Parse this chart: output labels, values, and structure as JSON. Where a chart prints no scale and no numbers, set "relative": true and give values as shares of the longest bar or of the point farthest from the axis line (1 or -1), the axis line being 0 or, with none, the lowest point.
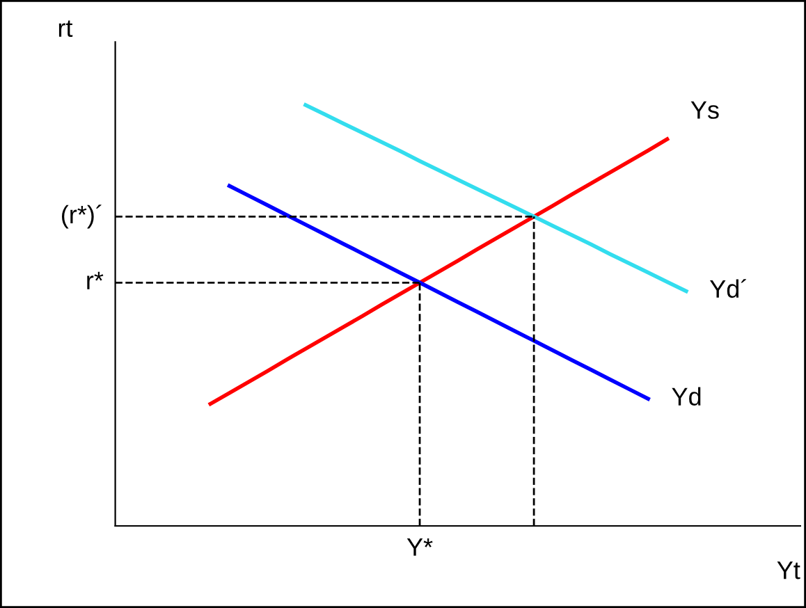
{
  "chart_data": {
    "type": "line",
    "relative": true,
    "xlabel": "Yt",
    "ylabel": "rt",
    "line_style": "solid",
    "categories": [
      null,
      null,
      null,
      null,
      null,
      null,
      null,
      null,
      null,
      null,
      null,
      null,
      null,
      null,
      null,
      null,
      null,
      null,
      null,
      null,
      null,
      null,
      null,
      null,
      null,
      null,
      null,
      null,
      null,
      null,
      null,
      null,
      null,
      null,
      null,
      null,
      null
    ],
    "series": [
      {
        "name": "Ys",
        "color": "#ff0000",
        "values": [
          null,
          null,
          null,
          null,
          null,
          0.29,
          0.316,
          0.342,
          0.368,
          0.395,
          0.421,
          0.447,
          0.473,
          0.499,
          0.526,
          0.552,
          0.578,
          0.604,
          0.63,
          0.657,
          0.683,
          0.709,
          0.735,
          0.761,
          0.788,
          0.814,
          0.84,
          0.866,
          0.892,
          0.919,
          null,
          null,
          null,
          null,
          null,
          null,
          null
        ]
      },
      {
        "name": "Yd",
        "color": "#0000ff",
        "values": [
          null,
          null,
          null,
          null,
          null,
          null,
          0.808,
          0.785,
          0.762,
          0.739,
          0.716,
          0.693,
          0.67,
          0.647,
          0.624,
          0.601,
          0.578,
          0.555,
          0.532,
          0.509,
          0.486,
          0.463,
          0.44,
          0.417,
          0.394,
          0.371,
          0.348,
          0.325,
          0.302,
          null,
          null,
          null,
          null,
          null,
          null,
          null,
          null
        ]
      },
      {
        "name": "Yd´",
        "color": "#33ddee",
        "values": [
          null,
          null,
          null,
          null,
          null,
          null,
          null,
          null,
          null,
          null,
          1.0,
          0.978,
          0.956,
          0.934,
          0.912,
          0.89,
          0.867,
          0.845,
          0.823,
          0.801,
          0.779,
          0.757,
          0.735,
          0.713,
          0.691,
          0.669,
          0.646,
          0.624,
          0.602,
          0.58,
          0.558,
          null,
          null,
          null,
          null,
          null,
          null
        ]
      }
    ],
    "ref_lines": [
      {
        "axis": "y",
        "value": 0.578,
        "label": "r*",
        "color": "#000000",
        "line_style": "dashed"
      },
      {
        "axis": "y",
        "value": 0.735,
        "label": "(r*)´",
        "color": "#000000",
        "line_style": "dashed"
      }
    ],
    "annotations": [
      "Y*"
    ]
  }
}
